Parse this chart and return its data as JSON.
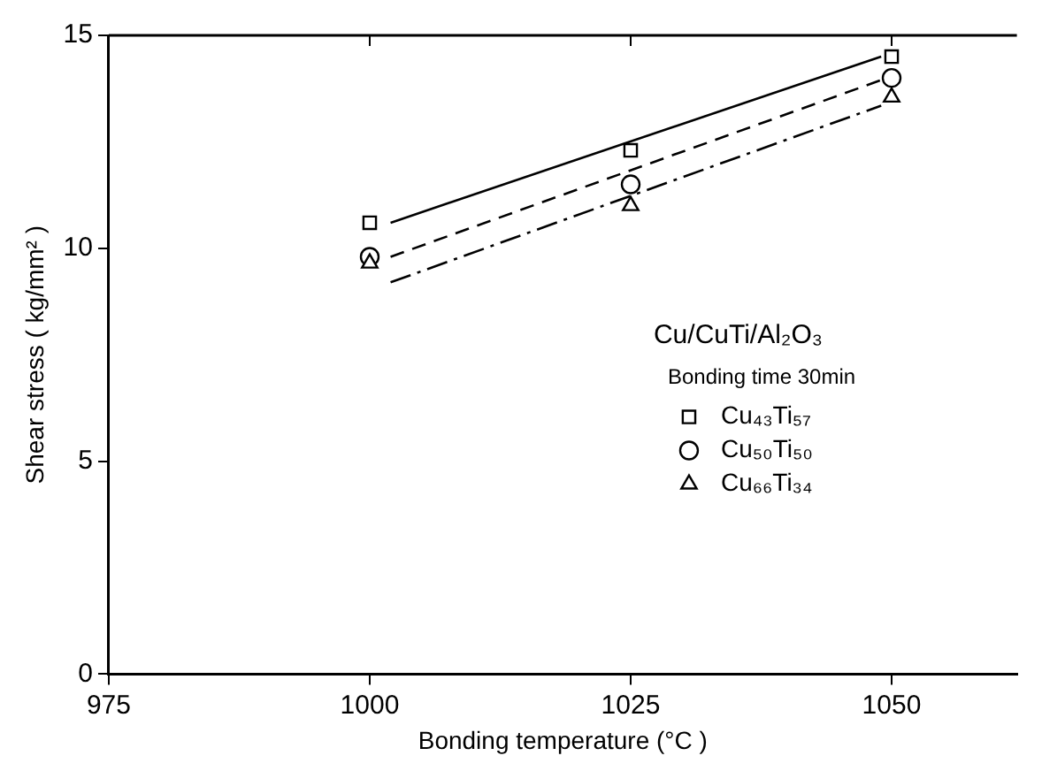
{
  "chart_data": {
    "type": "scatter",
    "xlabel": "Bonding temperature (°C )",
    "ylabel": "Shear stress ( kg/mm² )",
    "legend_title": "Cu/CuTi/Al₂O₃",
    "annotations": [
      "Bonding time 30min"
    ],
    "xlim": [
      975,
      1062
    ],
    "xticks": [
      975,
      1000,
      1025,
      1050
    ],
    "ylim": [
      0,
      15
    ],
    "yticks": [
      0,
      5,
      10,
      15
    ],
    "grid": false,
    "legend": "right",
    "series": [
      {
        "name": "Cu₄₃Ti₅₇",
        "marker": "square",
        "color": "#000000",
        "x": [
          1000,
          1025,
          1050
        ],
        "values": [
          10.6,
          12.3,
          14.5
        ]
      },
      {
        "name": "Cu₅₀Ti₅₀",
        "marker": "circle",
        "color": "#000000",
        "x": [
          1000,
          1025,
          1050
        ],
        "values": [
          9.8,
          11.5,
          14.0
        ]
      },
      {
        "name": "Cu₆₆Ti₃₄",
        "marker": "triangle",
        "color": "#000000",
        "x": [
          1000,
          1025,
          1050
        ],
        "values": [
          9.65,
          11.0,
          13.55
        ]
      },
      {
        "type": "line",
        "marker": "none",
        "line_style": "solid",
        "color": "#000000",
        "x": [
          1002,
          1049
        ],
        "values": [
          10.6,
          14.5
        ]
      },
      {
        "type": "line",
        "marker": "none",
        "line_style": "dashed",
        "color": "#000000",
        "x": [
          1002,
          1049
        ],
        "values": [
          9.8,
          13.95
        ]
      },
      {
        "type": "line",
        "marker": "none",
        "line_style": "dashdot",
        "color": "#000000",
        "x": [
          1002,
          1049
        ],
        "values": [
          9.2,
          13.35
        ]
      }
    ]
  }
}
